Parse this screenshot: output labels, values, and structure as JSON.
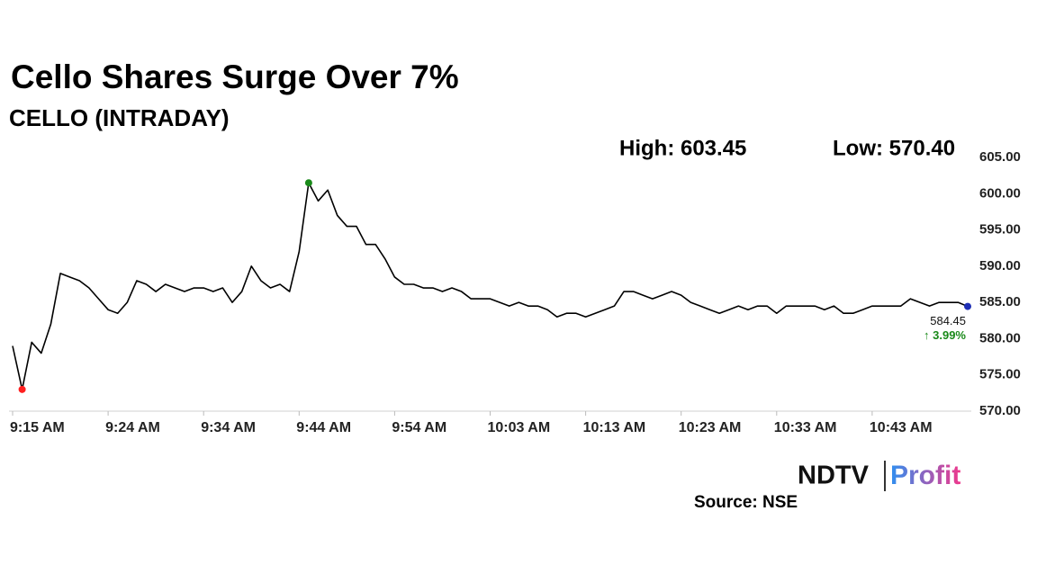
{
  "chart_data": {
    "type": "line",
    "title": "Cello Shares Surge Over 7%",
    "subtitle": "CELLO (INTRADAY)",
    "annotations": [
      "High: 603.45",
      "Low: 570.40",
      "↑ 3.99%"
    ],
    "source": "Source: NSE",
    "logo": [
      "NDTV",
      "Profit"
    ],
    "categories": [
      "9:15 AM",
      null,
      null,
      null,
      null,
      null,
      null,
      null,
      null,
      null,
      "9:24 AM",
      null,
      null,
      null,
      null,
      null,
      null,
      null,
      null,
      null,
      "9:34 AM",
      null,
      null,
      null,
      null,
      null,
      null,
      null,
      null,
      null,
      "9:44 AM",
      null,
      null,
      null,
      null,
      null,
      null,
      null,
      null,
      null,
      "9:54 AM",
      null,
      null,
      null,
      null,
      null,
      null,
      null,
      null,
      null,
      "10:03 AM",
      null,
      null,
      null,
      null,
      null,
      null,
      null,
      null,
      null,
      "10:13 AM",
      null,
      null,
      null,
      null,
      null,
      null,
      null,
      null,
      null,
      "10:23 AM",
      null,
      null,
      null,
      null,
      null,
      null,
      null,
      null,
      null,
      "10:33 AM",
      null,
      null,
      null,
      null,
      null,
      null,
      null,
      null,
      null,
      "10:43 AM",
      null,
      null,
      null,
      null,
      null,
      null,
      null,
      null,
      null,
      null
    ],
    "values": [
      579.0,
      573.0,
      579.5,
      578,
      582,
      589,
      588.5,
      588,
      587,
      585.5,
      584,
      583.5,
      585,
      588,
      587.5,
      586.5,
      587.5,
      587,
      586.5,
      587,
      587,
      586.5,
      587,
      585,
      586.5,
      590,
      588,
      587,
      587.5,
      586.5,
      592,
      601.5,
      599,
      600.5,
      597,
      595.5,
      595.5,
      593,
      593,
      591,
      588.5,
      587.5,
      587.5,
      587,
      587,
      586.5,
      587,
      586.5,
      585.5,
      585.5,
      585.5,
      585,
      584.5,
      585,
      584.5,
      584.5,
      584,
      583,
      583.5,
      583.5,
      583,
      583.5,
      584,
      584.5,
      586.5,
      586.5,
      586,
      585.5,
      586,
      586.5,
      586,
      585,
      584.5,
      584,
      583.5,
      584,
      584.5,
      584,
      584.5,
      584.5,
      583.5,
      584.5,
      584.5,
      584.5,
      584.5,
      584,
      584.5,
      583.5,
      583.5,
      584,
      584.5,
      584.5,
      584.5,
      584.5,
      585.5,
      585,
      584.5,
      585,
      585,
      585,
      584.45
    ],
    "value_labels": [
      null,
      null,
      null,
      null,
      null,
      null,
      null,
      null,
      null,
      null,
      null,
      null,
      null,
      null,
      null,
      null,
      null,
      null,
      null,
      null,
      null,
      null,
      null,
      null,
      null,
      null,
      null,
      null,
      null,
      null,
      null,
      null,
      null,
      null,
      null,
      null,
      null,
      null,
      null,
      null,
      null,
      null,
      null,
      null,
      null,
      null,
      null,
      null,
      null,
      null,
      null,
      null,
      null,
      null,
      null,
      null,
      null,
      null,
      null,
      null,
      null,
      null,
      null,
      null,
      null,
      null,
      null,
      null,
      null,
      null,
      null,
      null,
      null,
      null,
      null,
      null,
      null,
      null,
      null,
      null,
      null,
      null,
      null,
      null,
      null,
      null,
      null,
      null,
      null,
      null,
      null,
      null,
      null,
      null,
      null,
      null,
      null,
      null,
      null,
      null,
      "584.45"
    ],
    "color": "#000000",
    "high_color": "#1a8a1a",
    "low_color": "#ff2020",
    "last_color": "#1f2fb5",
    "change_color": "#1a8a1a",
    "ylim": [
      570,
      605
    ],
    "yticks": [
      {
        "value": 570,
        "label": "570.00"
      },
      {
        "value": 575,
        "label": "575.00"
      },
      {
        "value": 580,
        "label": "580.00"
      },
      {
        "value": 585,
        "label": "585.00"
      },
      {
        "value": 590,
        "label": "590.00"
      },
      {
        "value": 595,
        "label": "595.00"
      },
      {
        "value": 600,
        "label": "600.00"
      },
      {
        "value": 605,
        "label": "605.00"
      }
    ],
    "grid": false
  }
}
